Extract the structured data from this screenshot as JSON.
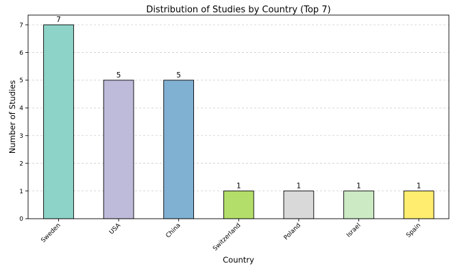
{
  "chart_data": {
    "type": "bar",
    "title": "Distribution of Studies by Country (Top 7)",
    "xlabel": "Country",
    "ylabel": "Number of Studies",
    "categories": [
      "Sweden",
      "USA",
      "China",
      "Switzerland",
      "Poland",
      "Israel",
      "Spain"
    ],
    "values": [
      7,
      5,
      5,
      1,
      1,
      1,
      1
    ],
    "colors": [
      "#8dd3c7",
      "#bebada",
      "#80b1d3",
      "#b3de69",
      "#d9d9d9",
      "#ccebc5",
      "#ffed6f"
    ],
    "ylim": [
      0,
      7.35
    ],
    "yticks": [
      0,
      1,
      2,
      3,
      4,
      5,
      6,
      7
    ],
    "grid": true,
    "grid_axis": "y",
    "legend": "none",
    "data_labels": true
  }
}
